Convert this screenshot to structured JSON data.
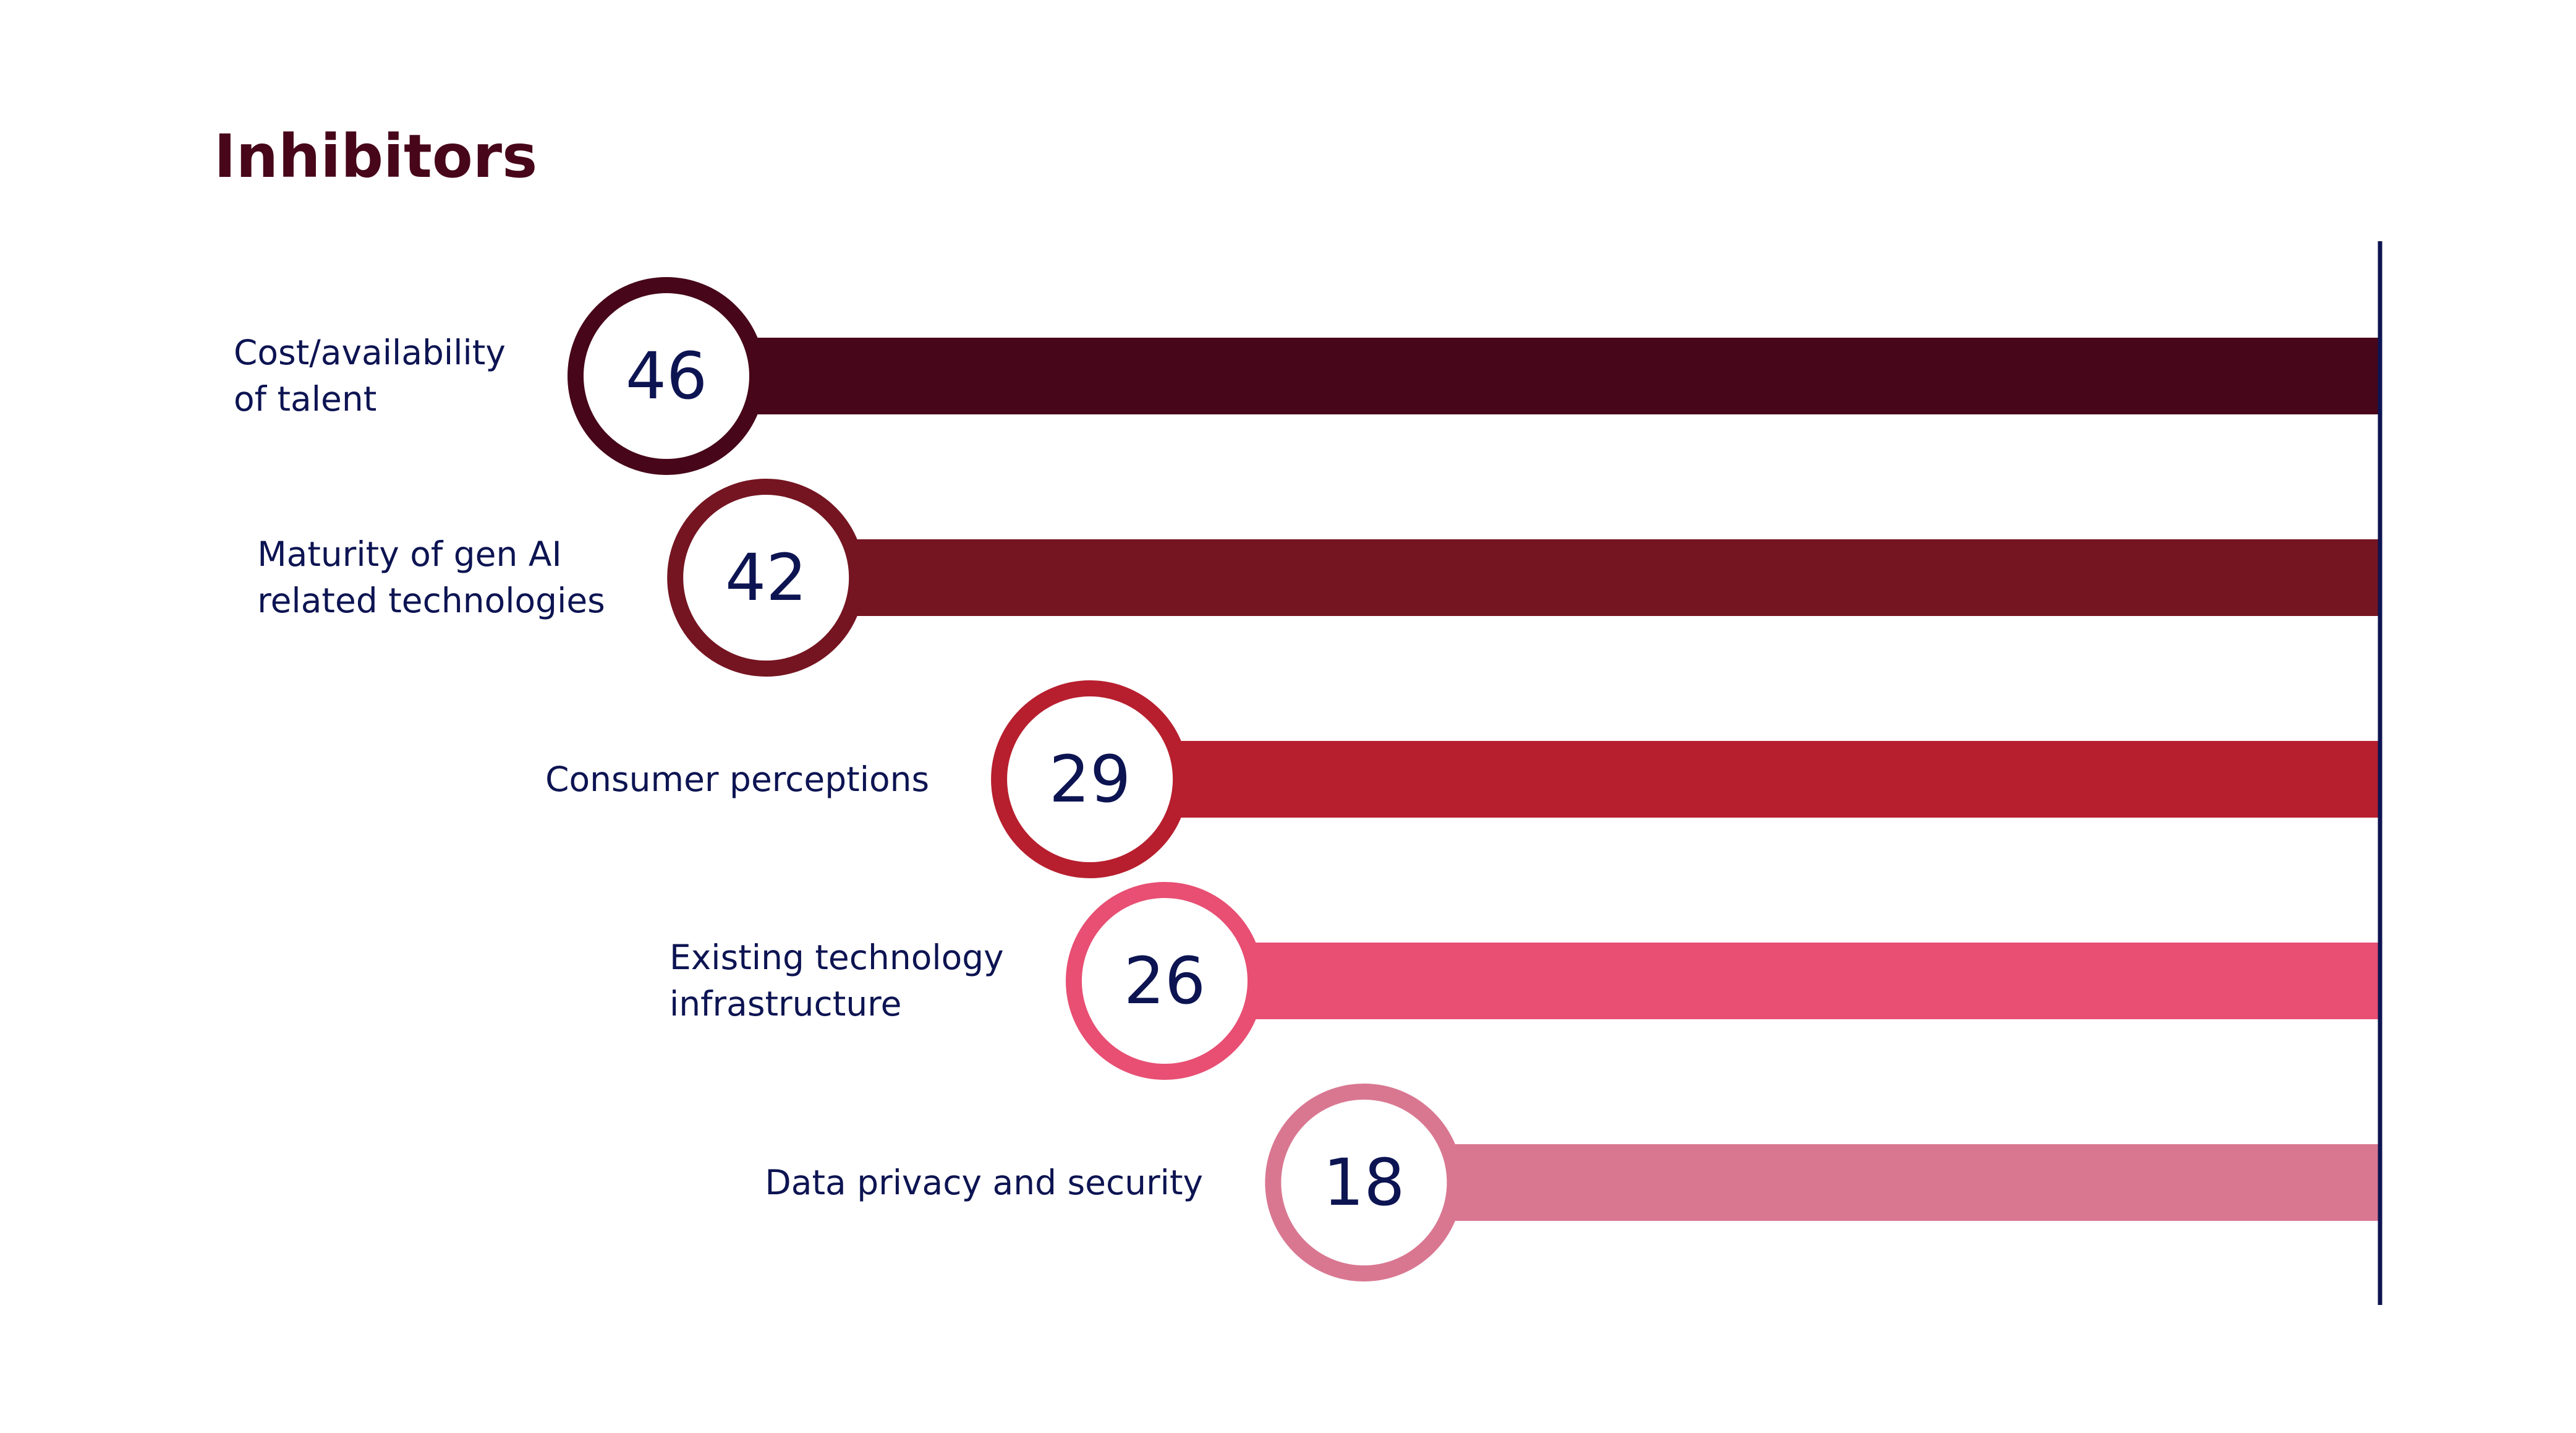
{
  "chart_data": {
    "type": "bar",
    "title": "Inhibitors",
    "xlabel": "",
    "ylabel": "",
    "categories": [
      "Cost/availability of talent",
      "Maturity of gen AI related technologies",
      "Consumer perceptions",
      "Existing technology infrastructure",
      "Data privacy and security"
    ],
    "label_lines": [
      [
        "Cost/availability",
        "of talent"
      ],
      [
        "Maturity of gen AI",
        "related technologies"
      ],
      [
        "Consumer perceptions"
      ],
      [
        "Existing technology",
        "infrastructure"
      ],
      [
        "Data privacy and security"
      ]
    ],
    "values": [
      46,
      42,
      29,
      26,
      18
    ],
    "xlim": [
      0,
      46
    ],
    "orientation": "horizontal",
    "grid": false,
    "legend": "none",
    "colors": [
      "#47061a",
      "#751521",
      "#b71f2e",
      "#e84f73",
      "#d97791"
    ],
    "value_color": "#0d1452",
    "axis_color": "#0d1452"
  }
}
